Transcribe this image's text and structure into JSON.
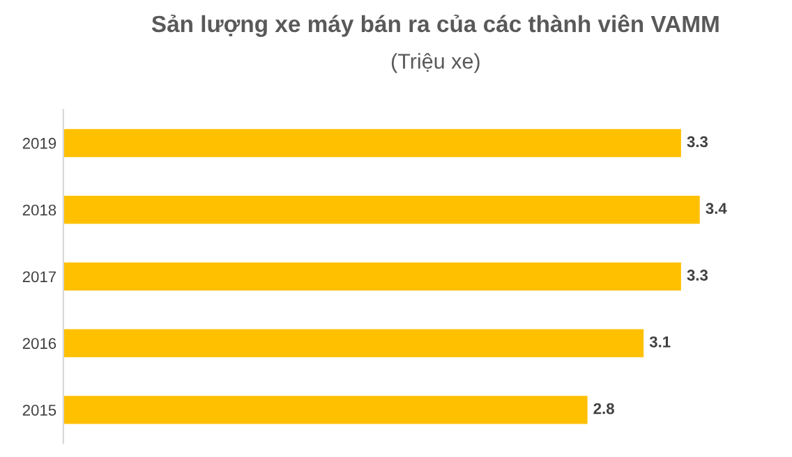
{
  "chart_data": {
    "type": "bar",
    "orientation": "horizontal",
    "title": "Sản lượng xe máy bán ra của các thành viên VAMM",
    "subtitle": "(Triệu xe)",
    "categories": [
      "2019",
      "2018",
      "2017",
      "2016",
      "2015"
    ],
    "values": [
      3.3,
      3.4,
      3.3,
      3.1,
      2.8
    ],
    "color": "#ffc000",
    "data_labels": true,
    "tick_labels": "y",
    "grid": false
  }
}
